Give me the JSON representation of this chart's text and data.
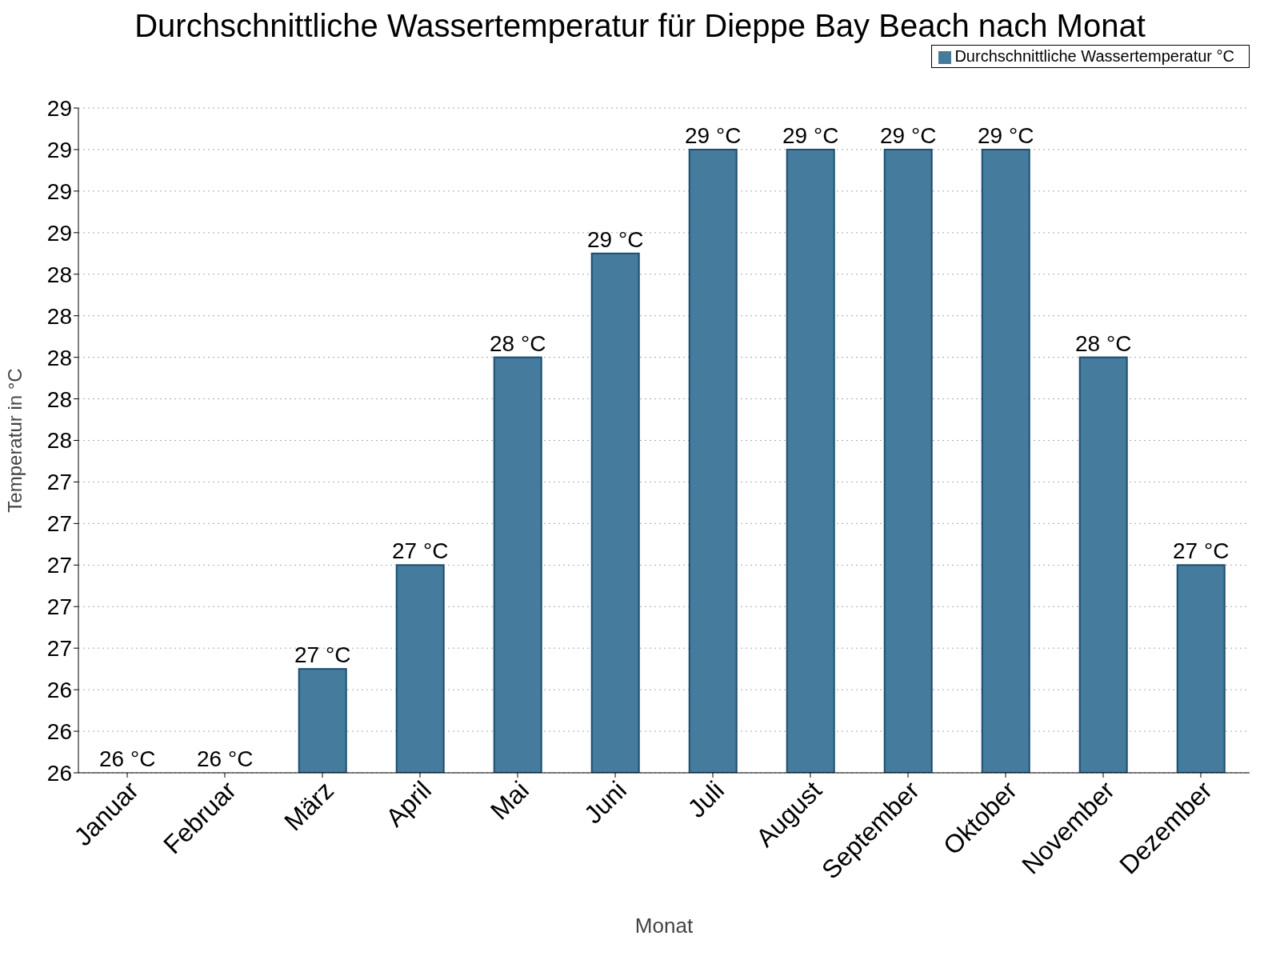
{
  "chart_data": {
    "type": "bar",
    "title": "Durchschnittliche Wassertemperatur für Dieppe Bay Beach nach Monat",
    "xlabel": "Monat",
    "ylabel": "Temperatur in °C",
    "categories": [
      "Januar",
      "Februar",
      "März",
      "April",
      "Mai",
      "Juni",
      "Juli",
      "August",
      "September",
      "Oktober",
      "November",
      "Dezember"
    ],
    "series": [
      {
        "name": "Durchschnittliche Wassertemperatur °C",
        "color": "#457b9d",
        "values": [
          26.0,
          26.0,
          26.5,
          27.0,
          28.0,
          28.5,
          29.0,
          29.0,
          29.0,
          29.0,
          28.0,
          27.0
        ],
        "value_labels": [
          "26 °C",
          "26 °C",
          "27 °C",
          "27 °C",
          "28 °C",
          "29 °C",
          "29 °C",
          "29 °C",
          "29 °C",
          "29 °C",
          "28 °C",
          "27 °C"
        ]
      }
    ],
    "ylim": [
      26,
      29.2
    ],
    "yticks": [
      {
        "value": 26.0,
        "label": "26"
      },
      {
        "value": 26.2,
        "label": "26"
      },
      {
        "value": 26.4,
        "label": "26"
      },
      {
        "value": 26.6,
        "label": "27"
      },
      {
        "value": 26.8,
        "label": "27"
      },
      {
        "value": 27.0,
        "label": "27"
      },
      {
        "value": 27.2,
        "label": "27"
      },
      {
        "value": 27.4,
        "label": "27"
      },
      {
        "value": 27.6,
        "label": "28"
      },
      {
        "value": 27.8,
        "label": "28"
      },
      {
        "value": 28.0,
        "label": "28"
      },
      {
        "value": 28.2,
        "label": "28"
      },
      {
        "value": 28.4,
        "label": "28"
      },
      {
        "value": 28.6,
        "label": "29"
      },
      {
        "value": 28.8,
        "label": "29"
      },
      {
        "value": 29.0,
        "label": "29"
      },
      {
        "value": 29.2,
        "label": "29"
      }
    ],
    "grid": "y",
    "legend": "top right"
  }
}
